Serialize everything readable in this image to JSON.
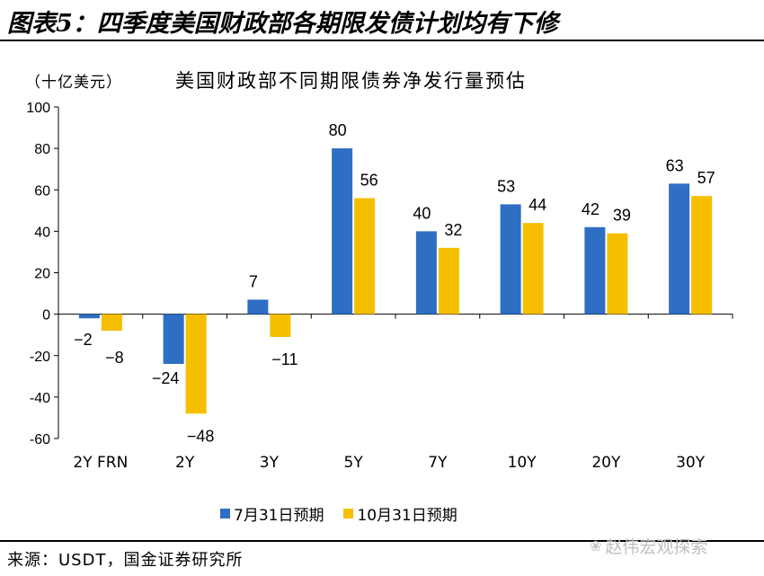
{
  "figure_title": "图表5：四季度美国财政部各期限发债计划均有下修",
  "unit_label": "（十亿美元）",
  "source": "来源：USDT，国金证券研究所",
  "watermark": "赵伟宏观探索",
  "colors": {
    "series1": "#2e6fc4",
    "series2": "#f5bf00",
    "axis": "#000000"
  },
  "chart_data": {
    "type": "bar",
    "title": "美国财政部不同期限债券净发行量预估",
    "categories": [
      "2Y FRN",
      "2Y",
      "3Y",
      "5Y",
      "7Y",
      "10Y",
      "20Y",
      "30Y"
    ],
    "series": [
      {
        "name": "7月31日预期",
        "values": [
          -2,
          -24,
          7,
          80,
          40,
          53,
          42,
          63
        ]
      },
      {
        "name": "10月31日预期",
        "values": [
          -8,
          -48,
          -11,
          56,
          32,
          44,
          39,
          57
        ]
      }
    ],
    "ylim": [
      -60,
      100
    ],
    "yticks": [
      100,
      80,
      60,
      40,
      20,
      0,
      -20,
      -40,
      -60
    ],
    "legend_position": "bottom",
    "grid": false
  }
}
